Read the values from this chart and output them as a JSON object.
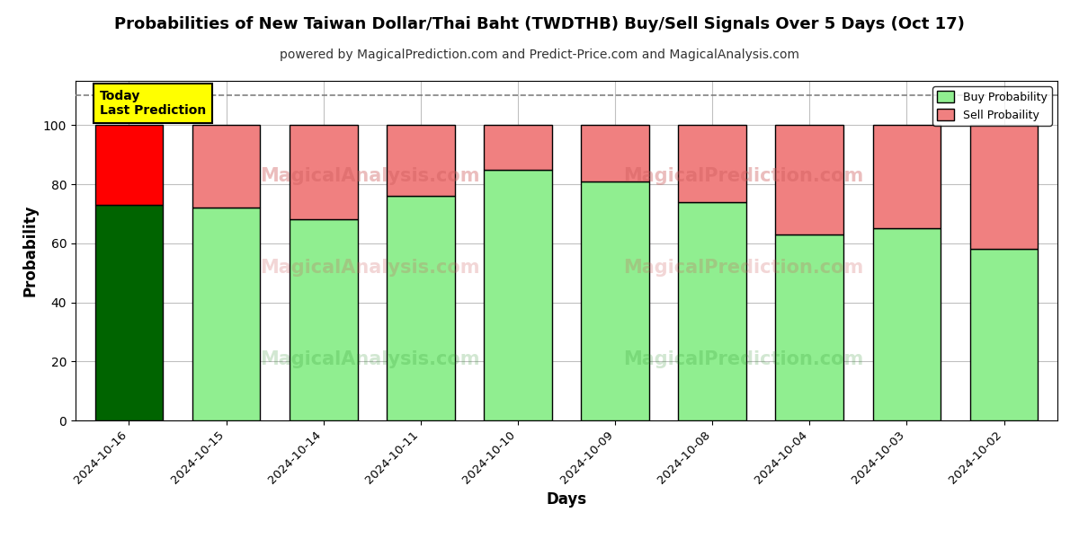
{
  "title": "Probabilities of New Taiwan Dollar/Thai Baht (TWDTHB) Buy/Sell Signals Over 5 Days (Oct 17)",
  "subtitle": "powered by MagicalPrediction.com and Predict-Price.com and MagicalAnalysis.com",
  "xlabel": "Days",
  "ylabel": "Probability",
  "dates": [
    "2024-10-16",
    "2024-10-15",
    "2024-10-14",
    "2024-10-11",
    "2024-10-10",
    "2024-10-09",
    "2024-10-08",
    "2024-10-04",
    "2024-10-03",
    "2024-10-02"
  ],
  "buy_values": [
    73,
    72,
    68,
    76,
    85,
    81,
    74,
    63,
    65,
    58
  ],
  "sell_values": [
    27,
    28,
    32,
    24,
    15,
    19,
    26,
    37,
    35,
    42
  ],
  "buy_colors": [
    "#006400",
    "#90EE90",
    "#90EE90",
    "#90EE90",
    "#90EE90",
    "#90EE90",
    "#90EE90",
    "#90EE90",
    "#90EE90",
    "#90EE90"
  ],
  "sell_colors": [
    "#FF0000",
    "#F08080",
    "#F08080",
    "#F08080",
    "#F08080",
    "#F08080",
    "#F08080",
    "#F08080",
    "#F08080",
    "#F08080"
  ],
  "today_box_color": "#FFFF00",
  "today_box_text": "Today\nLast Prediction",
  "legend_buy_color": "#90EE90",
  "legend_sell_color": "#F08080",
  "ylim": [
    0,
    115
  ],
  "yticks": [
    0,
    20,
    40,
    60,
    80,
    100
  ],
  "dashed_line_y": 110,
  "bar_edge_color": "#000000",
  "bar_width": 0.7,
  "grid_color": "#C0C0C0",
  "background_color": "#FFFFFF",
  "title_fontsize": 13,
  "subtitle_fontsize": 10
}
